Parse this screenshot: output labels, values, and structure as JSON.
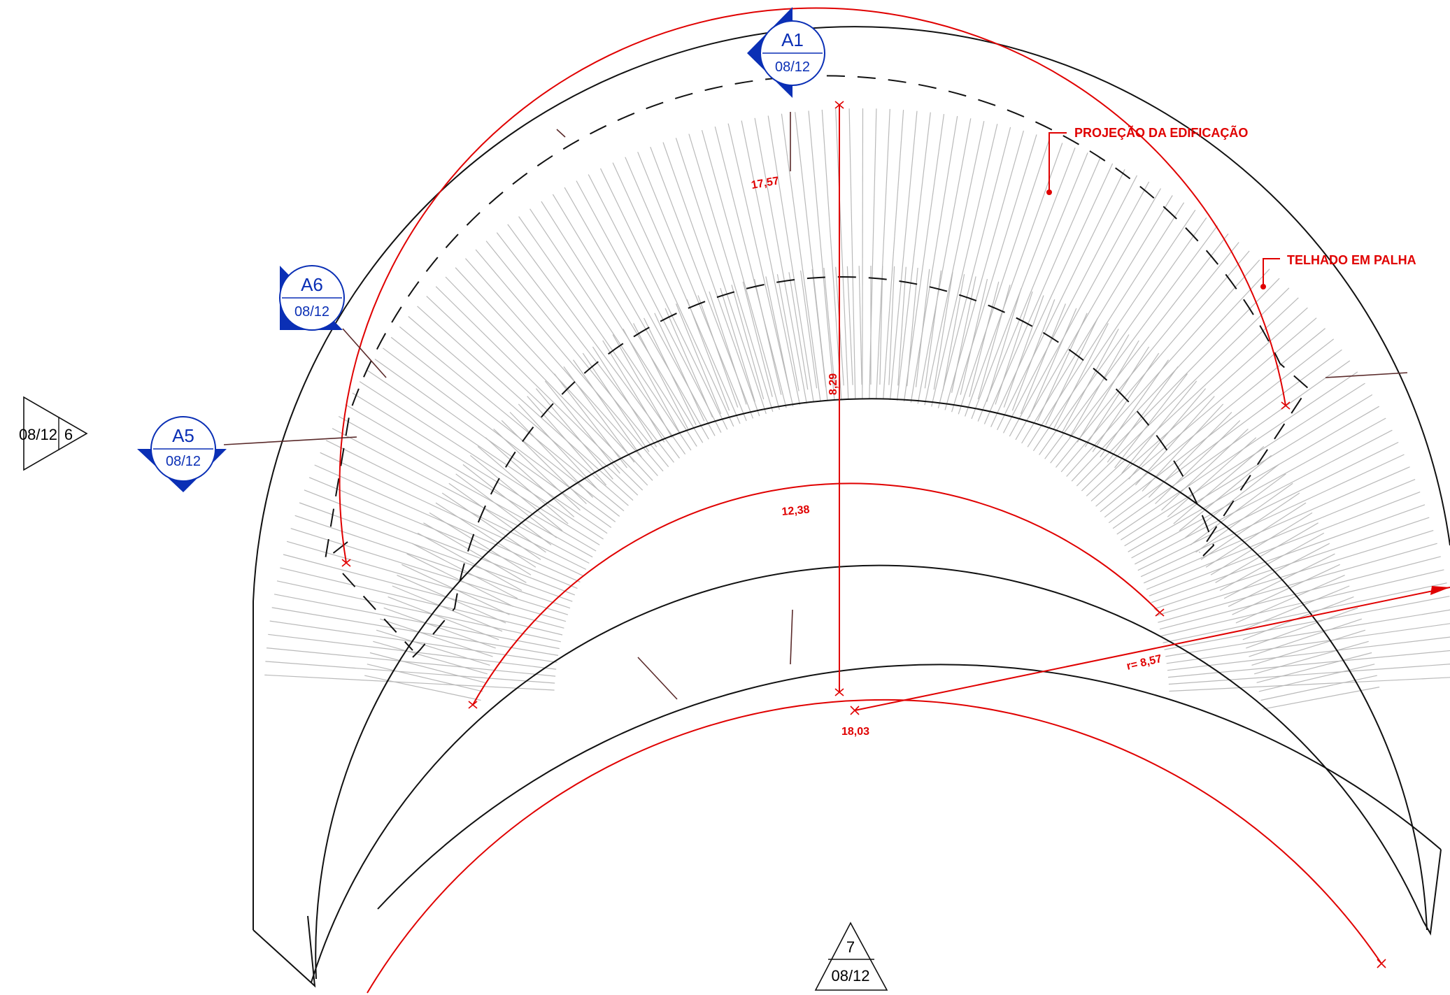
{
  "annotations": {
    "projection": "PROJEÇÃO DA EDIFICAÇÃO",
    "thatch_roof": "TELHADO EM PALHA"
  },
  "dimensions": {
    "outer_arc": "17,57",
    "middle_arc": "12,38",
    "lower_arc": "18,03",
    "depth": "8,29",
    "radius": "r= 8,57"
  },
  "elevation_tags": [
    {
      "id": "A1",
      "sheet": "08/12"
    },
    {
      "id": "A6",
      "sheet": "08/12"
    },
    {
      "id": "A5",
      "sheet": "08/12"
    }
  ],
  "section_markers": [
    {
      "sheet": "08/12",
      "number": "6"
    },
    {
      "sheet": "08/12",
      "number": "7"
    }
  ],
  "colors": {
    "annotation": "#e00000",
    "tag_blue": "#0a2fb5",
    "linework": "#111111",
    "hatch": "#b9b9b9"
  }
}
